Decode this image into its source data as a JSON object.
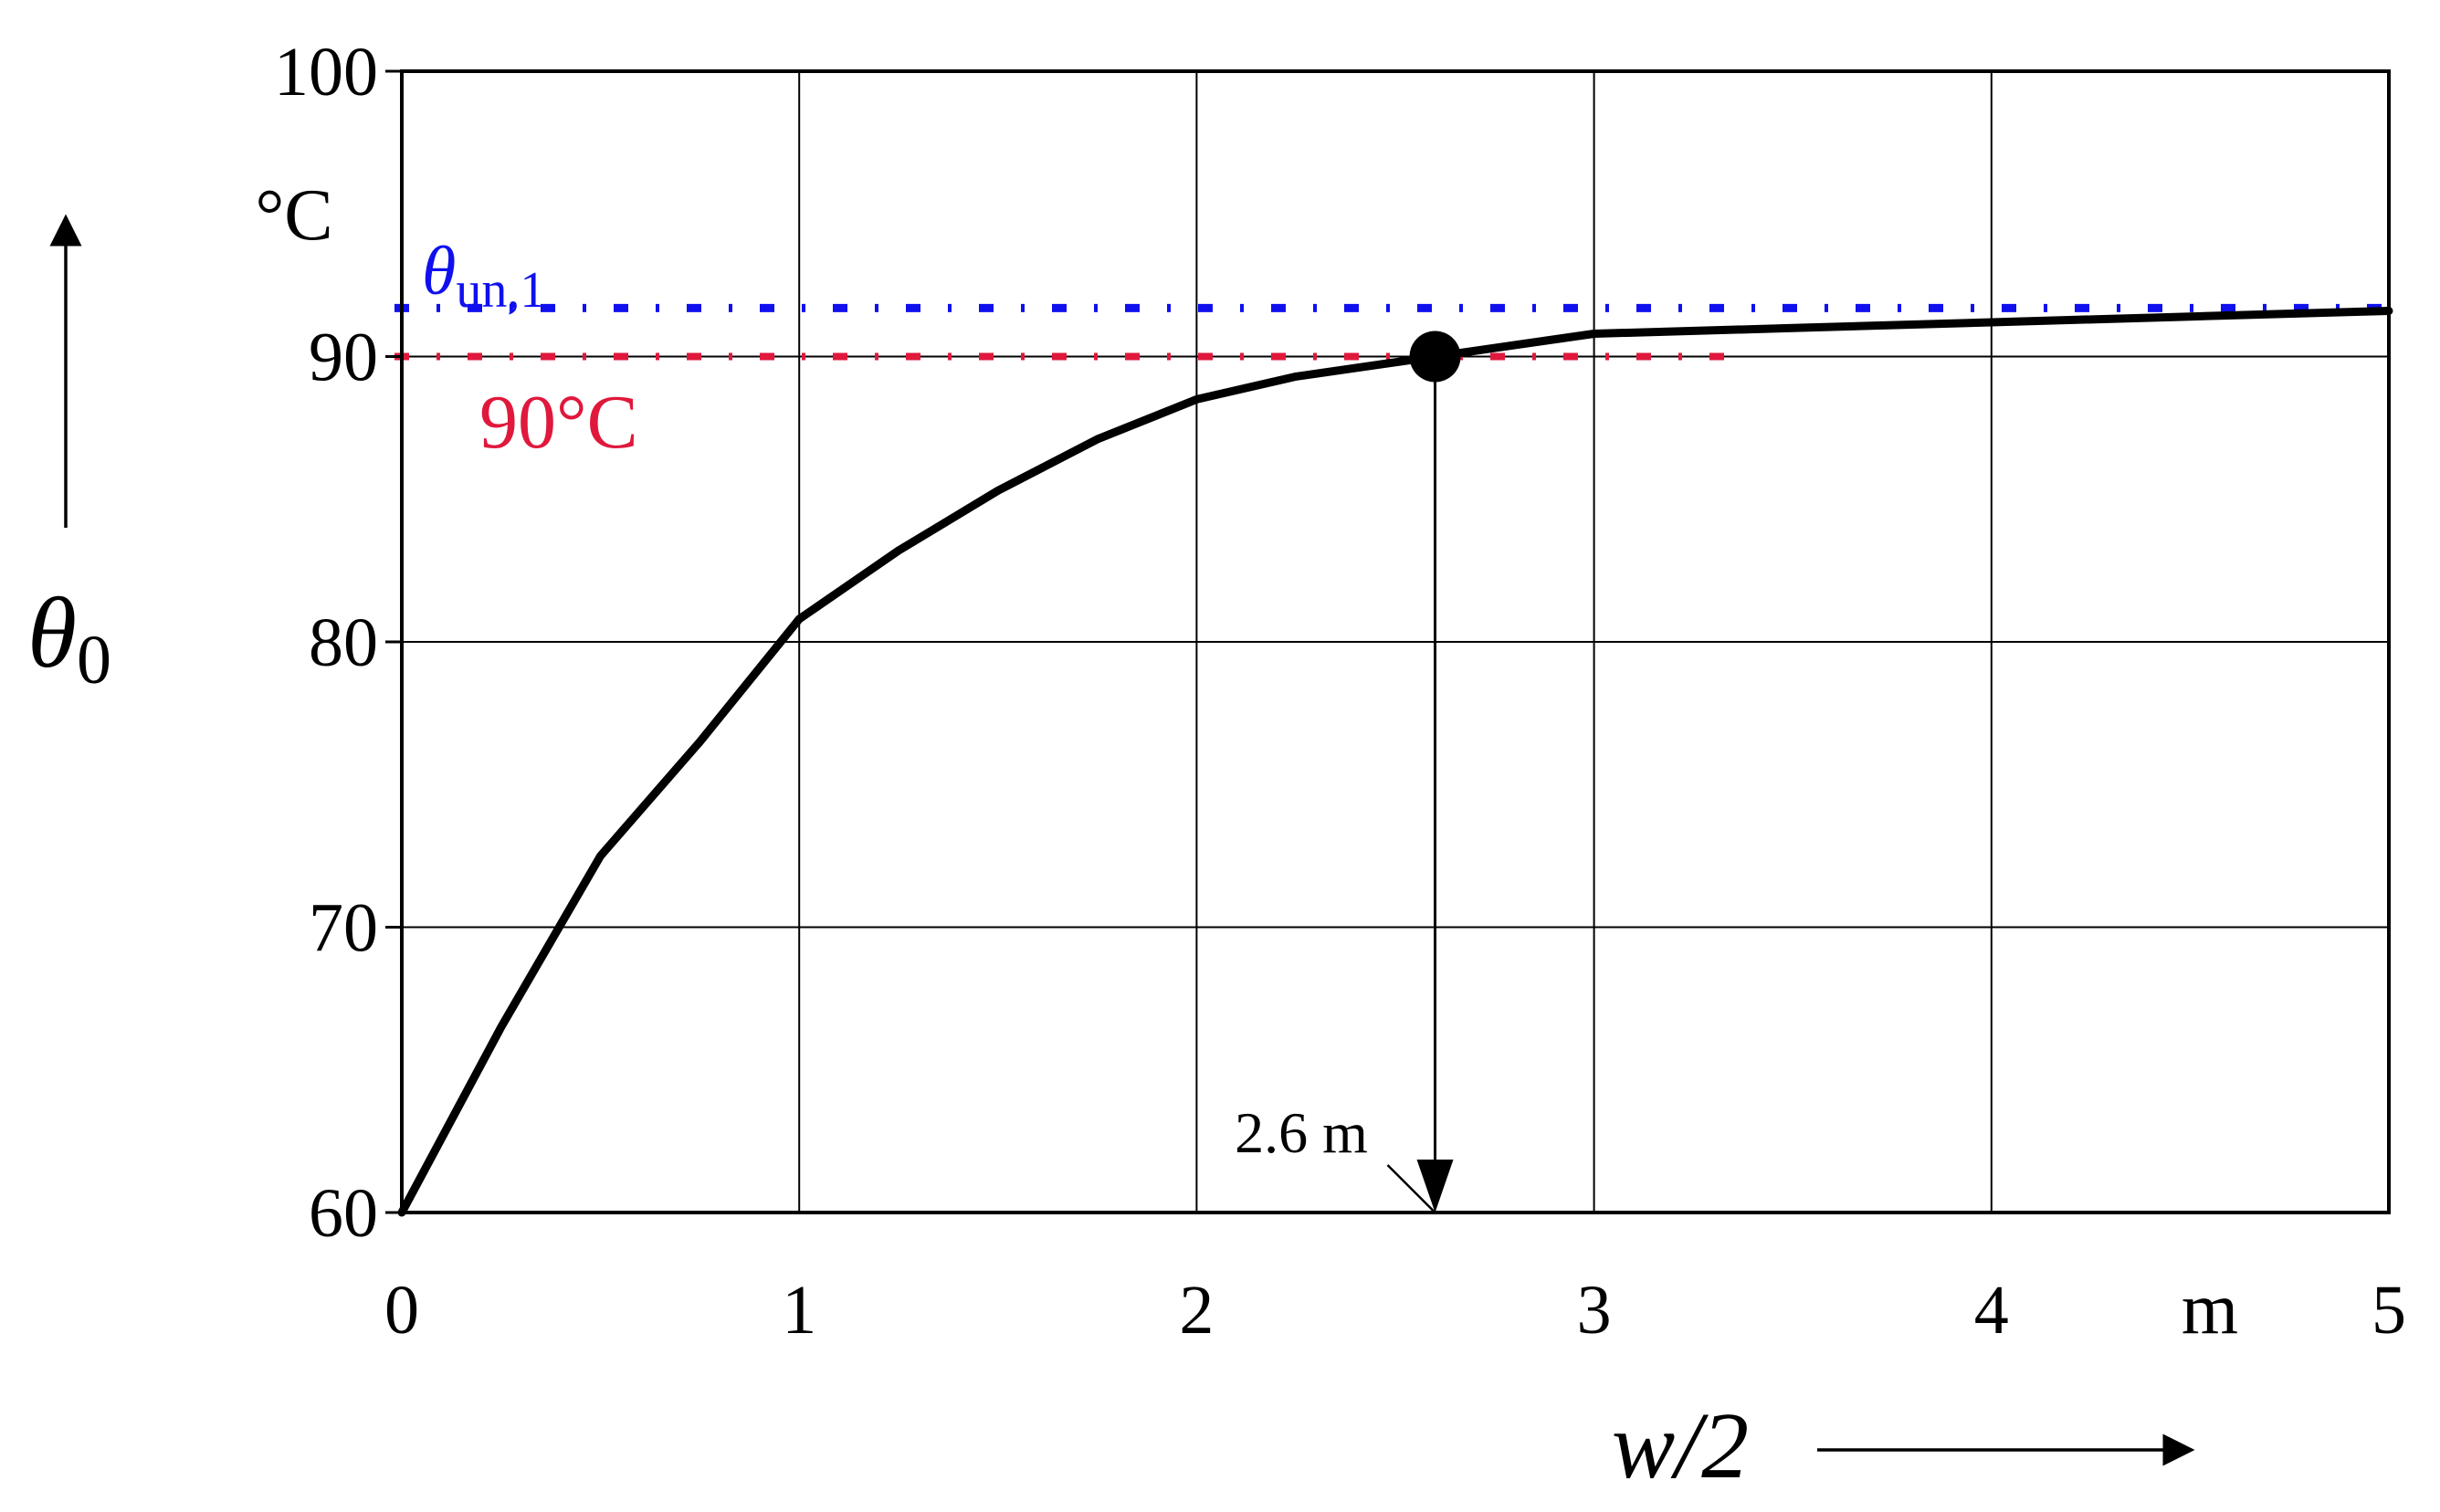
{
  "colors": {
    "curve": "#000000",
    "grid": "#000000",
    "theta_un_line": "#1010ee",
    "ninety_line": "#e0183c"
  },
  "chart_data": {
    "type": "line",
    "title": "",
    "xlabel": "w/2",
    "ylabel": "θ0",
    "x_unit": "m",
    "y_unit": "°C",
    "xlim": [
      0,
      5
    ],
    "ylim": [
      60,
      100
    ],
    "grid": true,
    "x_ticks": [
      "0",
      "1",
      "2",
      "3",
      "4",
      "5"
    ],
    "y_ticks": [
      "60",
      "70",
      "80",
      "90",
      "100"
    ],
    "series": [
      {
        "x": [
          0,
          0.25,
          0.5,
          0.75,
          1.0,
          1.25,
          1.5,
          1.75,
          2.0,
          2.25,
          2.5,
          2.6,
          3.0,
          3.5,
          4.0,
          4.5,
          5.0
        ],
        "y": [
          60,
          66.5,
          72.5,
          76.5,
          80.8,
          83.2,
          85.3,
          87.1,
          88.5,
          89.3,
          89.8,
          90.0,
          90.8,
          91.0,
          91.2,
          91.4,
          91.6
        ]
      }
    ],
    "reference_lines": [
      {
        "label": "θun,1",
        "y": 91.7,
        "style": "dash-dot",
        "color": "blue"
      },
      {
        "label": "90°C",
        "y": 90,
        "style": "dash-dot",
        "color": "red",
        "x_end": 3.35
      }
    ],
    "marker": {
      "x": 2.6,
      "y": 90
    },
    "annotation": {
      "text": "2.6 m",
      "x": 2.6
    }
  }
}
